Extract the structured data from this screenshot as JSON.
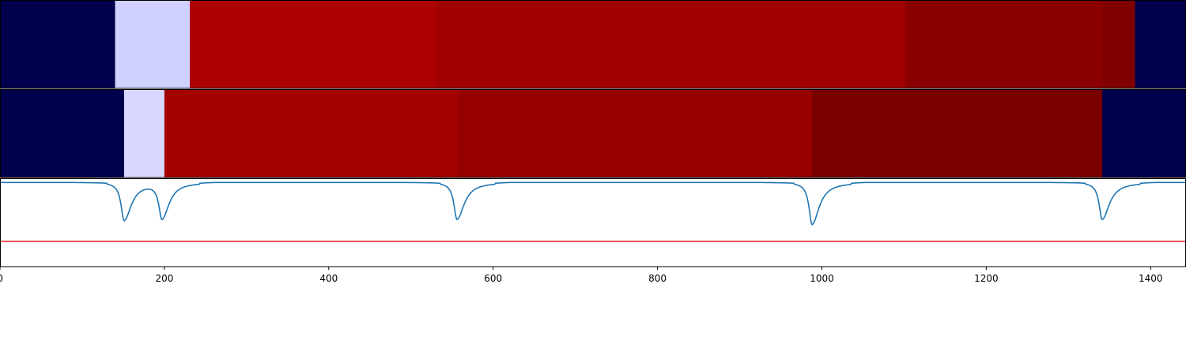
{
  "chart_data": [
    {
      "type": "heatmap",
      "row": "top",
      "segments": [
        {
          "start": 0,
          "end": 140,
          "color": "#00004c"
        },
        {
          "start": 140,
          "end": 231,
          "color": "#d1d1ff"
        },
        {
          "start": 231,
          "end": 530,
          "color": "#ad0000"
        },
        {
          "start": 530,
          "end": 1101,
          "color": "#a00000"
        },
        {
          "start": 1101,
          "end": 1341,
          "color": "#8a0000"
        },
        {
          "start": 1341,
          "end": 1381,
          "color": "#800000"
        },
        {
          "start": 1381,
          "end": 1443,
          "color": "#00004c"
        }
      ]
    },
    {
      "type": "heatmap",
      "row": "middle",
      "segments": [
        {
          "start": 0,
          "end": 151,
          "color": "#00004c"
        },
        {
          "start": 151,
          "end": 200,
          "color": "#d8d8ff"
        },
        {
          "start": 200,
          "end": 557,
          "color": "#a30000"
        },
        {
          "start": 557,
          "end": 988,
          "color": "#960000"
        },
        {
          "start": 988,
          "end": 1341,
          "color": "#7a0000"
        },
        {
          "start": 1341,
          "end": 1443,
          "color": "#00004c"
        }
      ]
    },
    {
      "type": "line",
      "row": "bottom",
      "xlim": [
        0,
        1443
      ],
      "ylim": [
        -1.0,
        0.05
      ],
      "threshold": -0.7,
      "threshold_color": "#e31a1c",
      "line_color": "#1f77b4",
      "dips": [
        {
          "center": 151,
          "depth": -0.45
        },
        {
          "center": 197,
          "depth": -0.42
        },
        {
          "center": 556,
          "depth": -0.44
        },
        {
          "center": 988,
          "depth": -0.5
        },
        {
          "center": 1341,
          "depth": -0.44
        }
      ],
      "x_ticks": [
        "0",
        "200",
        "400",
        "600",
        "800",
        "1000",
        "1200",
        "1400"
      ],
      "x_tick_values": [
        0,
        200,
        400,
        600,
        800,
        1000,
        1200,
        1400
      ]
    }
  ]
}
